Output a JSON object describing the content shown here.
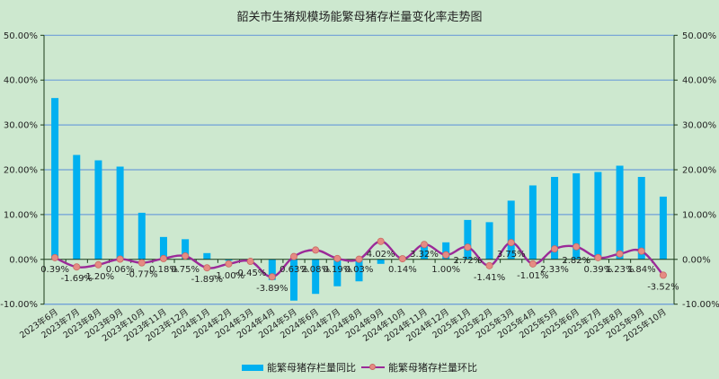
{
  "chart_data": {
    "type": "bar+line",
    "title": "韶关市生猪规模场能繁母猪存栏量变化率走势图",
    "categories": [
      "2023年6月",
      "2023年7月",
      "2023年8月",
      "2023年9月",
      "2023年10月",
      "2023年11月",
      "2023年12月",
      "2024年1月",
      "2024年2月",
      "2024年3月",
      "2024年4月",
      "2024年5月",
      "2024年6月",
      "2024年7月",
      "2024年8月",
      "2024年9月",
      "2024年10月",
      "2024年11月",
      "2024年12月",
      "2025年1月",
      "2025年2月",
      "2025年3月",
      "2025年4月",
      "2025年5月",
      "2025年6月",
      "2025年7月",
      "2025年8月",
      "2025年9月",
      "2025年10月"
    ],
    "series": [
      {
        "name": "能繁母猪存栏量同比",
        "type": "bar",
        "color": "#00b0f0",
        "axis": "left",
        "values": [
          36.0,
          23.3,
          22.1,
          20.7,
          10.4,
          5.0,
          4.5,
          1.4,
          -0.3,
          -0.4,
          -4.6,
          -9.2,
          -7.7,
          -6.0,
          -4.9,
          -1.0,
          0.0,
          3.2,
          3.8,
          8.8,
          8.3,
          13.1,
          16.5,
          18.4,
          19.2,
          19.5,
          20.9,
          18.4,
          14.0
        ]
      },
      {
        "name": "能繁母猪存栏量环比",
        "type": "line",
        "color": "#9b2a98",
        "marker_color": "#e58b83",
        "axis": "right",
        "values": [
          0.39,
          -1.69,
          -1.2,
          0.06,
          -0.77,
          0.18,
          0.75,
          -1.89,
          -1.0,
          -0.45,
          -3.89,
          0.63,
          2.08,
          0.19,
          0.03,
          4.02,
          0.14,
          3.32,
          1.0,
          2.72,
          -1.41,
          3.75,
          -1.01,
          2.33,
          2.82,
          0.39,
          1.23,
          1.84,
          -3.52
        ],
        "data_labels": [
          "0.39%",
          "-1.69%",
          "-1.20%",
          "0.06%",
          "-0.77%",
          "0.18%",
          "0.75%",
          "-1.89%",
          "-1.00%",
          "-0.45%",
          "-3.89%",
          "0.63%",
          "2.08%",
          "0.19%",
          "0.03%",
          "4.02%",
          "0.14%",
          "3.32%",
          "1.00%",
          "2.72%",
          "-1.41%",
          "3.75%",
          "-1.01%",
          "2.33%",
          "2.82%",
          "0.39%",
          "1.23%",
          "1.84%",
          "-3.52%"
        ]
      }
    ],
    "yaxis_left": {
      "ticks": [
        "50.00%",
        "40.00%",
        "30.00%",
        "20.00%",
        "10.00%",
        "0.00%",
        "-10.00%"
      ],
      "range": [
        -10,
        50
      ]
    },
    "yaxis_right": {
      "ticks": [
        "50.00%",
        "40.00%",
        "30.00%",
        "20.00%",
        "10.00%",
        "0.00%",
        "-10.00%"
      ],
      "range": [
        -10,
        50
      ]
    },
    "xlabel": "",
    "ylabel": "",
    "grid": true,
    "legend_position": "bottom"
  },
  "legend": {
    "bar_label": "能繁母猪存栏量同比",
    "line_label": "能繁母猪存栏量环比"
  }
}
